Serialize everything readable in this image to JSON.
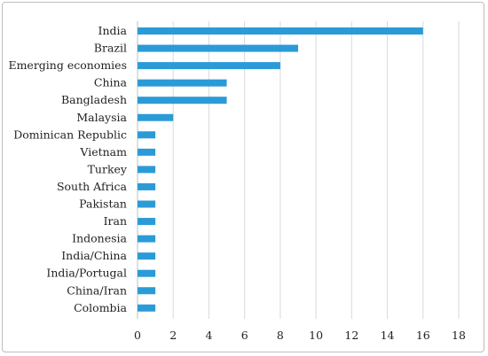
{
  "chart_data": {
    "type": "bar",
    "orientation": "horizontal",
    "title": "",
    "xlabel": "",
    "ylabel": "",
    "categories": [
      "India",
      "Brazil",
      "Emerging economies",
      "China",
      "Bangladesh",
      "Malaysia",
      "Dominican Republic",
      "Vietnam",
      "Turkey",
      "South Africa",
      "Pakistan",
      "Iran",
      "Indonesia",
      "India/China",
      "India/Portugal",
      "China/Iran",
      "Colombia"
    ],
    "values": [
      16,
      9,
      8,
      5,
      5,
      2,
      1,
      1,
      1,
      1,
      1,
      1,
      1,
      1,
      1,
      1,
      1
    ],
    "xlim": [
      0,
      18
    ],
    "xticks": [
      0,
      2,
      4,
      6,
      8,
      10,
      12,
      14,
      16,
      18
    ],
    "grid": "vertical",
    "legend": "none",
    "bar_color": "#2b9bd8"
  }
}
